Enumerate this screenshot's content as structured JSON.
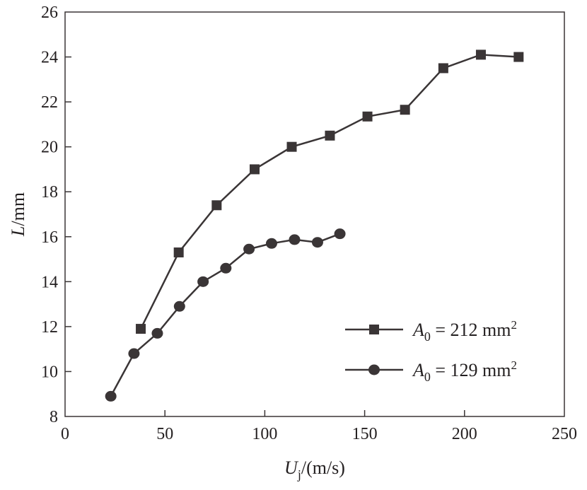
{
  "chart_data": {
    "type": "line",
    "title": "",
    "xlabel": "U_j/(m/s)",
    "xlabel_main": "U",
    "xlabel_sub": "j",
    "xlabel_unit": "/(m/s)",
    "ylabel": "L/mm",
    "ylabel_main": "L",
    "ylabel_unit": "/mm",
    "xlim": [
      0,
      250
    ],
    "ylim": [
      8,
      26
    ],
    "xticks": [
      0,
      50,
      100,
      150,
      200,
      250
    ],
    "yticks": [
      8,
      10,
      12,
      14,
      16,
      18,
      20,
      22,
      24,
      26
    ],
    "grid": false,
    "legend_position": "bottom-right",
    "colors": {
      "series": "#3a3536"
    },
    "series": [
      {
        "name": "A0 = 212 mm2",
        "legend_main": "A",
        "legend_sub": "0",
        "legend_rest": " = 212 mm",
        "legend_sup": "2",
        "marker": "square",
        "x": [
          37.9,
          56.9,
          75.9,
          94.9,
          113.5,
          132.6,
          151.4,
          170.2,
          189.4,
          208.2,
          227.1
        ],
        "y": [
          11.9,
          15.3,
          17.4,
          19.0,
          20.0,
          20.5,
          21.35,
          21.65,
          23.5,
          24.1,
          24.0
        ]
      },
      {
        "name": "A0 = 129 mm2",
        "legend_main": "A",
        "legend_sub": "0",
        "legend_rest": " = 129 mm",
        "legend_sup": "2",
        "marker": "circle",
        "x": [
          22.9,
          34.5,
          46.2,
          57.3,
          69.1,
          80.5,
          92.1,
          103.4,
          114.9,
          126.4,
          137.6
        ],
        "y": [
          8.9,
          10.8,
          11.7,
          12.9,
          14.0,
          14.6,
          15.45,
          15.7,
          15.87,
          15.75,
          16.13
        ]
      }
    ]
  }
}
